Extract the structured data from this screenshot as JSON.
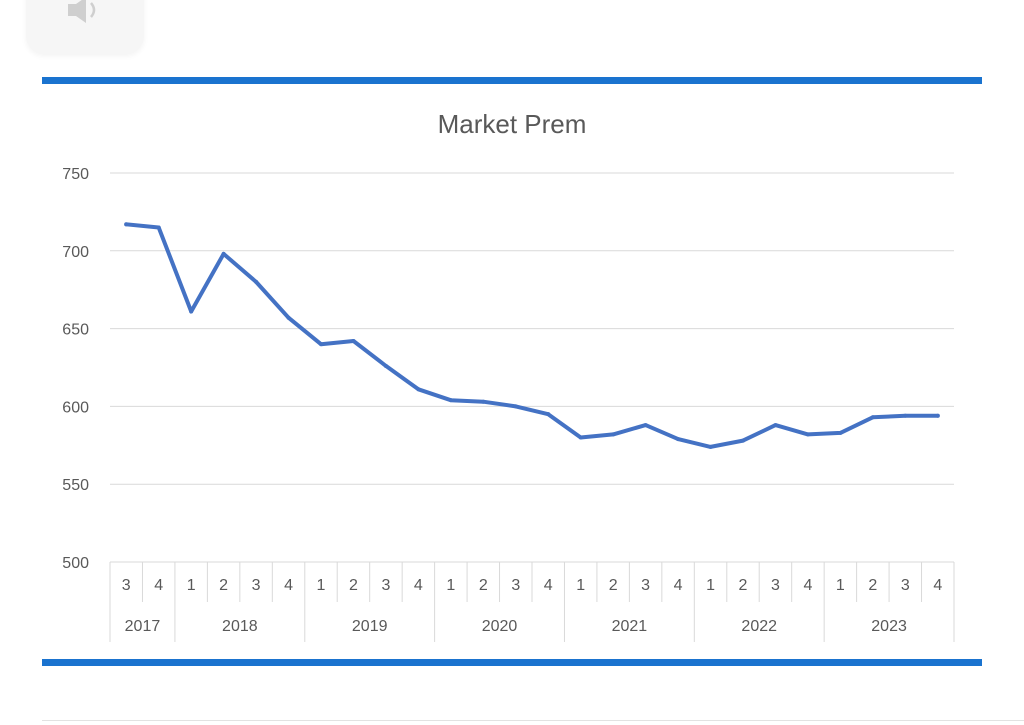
{
  "chart_data": {
    "type": "line",
    "title": "Market Prem",
    "xlabel": "",
    "ylabel": "",
    "ylim": [
      500,
      750
    ],
    "yticks": [
      500,
      550,
      600,
      650,
      700,
      750
    ],
    "grid": true,
    "line_color": "#4472c4",
    "x": [
      {
        "quarter": "3",
        "year": "2017"
      },
      {
        "quarter": "4",
        "year": "2017"
      },
      {
        "quarter": "1",
        "year": "2018"
      },
      {
        "quarter": "2",
        "year": "2018"
      },
      {
        "quarter": "3",
        "year": "2018"
      },
      {
        "quarter": "4",
        "year": "2018"
      },
      {
        "quarter": "1",
        "year": "2019"
      },
      {
        "quarter": "2",
        "year": "2019"
      },
      {
        "quarter": "3",
        "year": "2019"
      },
      {
        "quarter": "4",
        "year": "2019"
      },
      {
        "quarter": "1",
        "year": "2020"
      },
      {
        "quarter": "2",
        "year": "2020"
      },
      {
        "quarter": "3",
        "year": "2020"
      },
      {
        "quarter": "4",
        "year": "2020"
      },
      {
        "quarter": "1",
        "year": "2021"
      },
      {
        "quarter": "2",
        "year": "2021"
      },
      {
        "quarter": "3",
        "year": "2021"
      },
      {
        "quarter": "4",
        "year": "2021"
      },
      {
        "quarter": "1",
        "year": "2022"
      },
      {
        "quarter": "2",
        "year": "2022"
      },
      {
        "quarter": "3",
        "year": "2022"
      },
      {
        "quarter": "4",
        "year": "2022"
      },
      {
        "quarter": "1",
        "year": "2023"
      },
      {
        "quarter": "2",
        "year": "2023"
      },
      {
        "quarter": "3",
        "year": "2023"
      },
      {
        "quarter": "4",
        "year": "2023"
      }
    ],
    "years": [
      "2017",
      "2018",
      "2019",
      "2020",
      "2021",
      "2022",
      "2023"
    ],
    "series": [
      {
        "values": [
          717,
          715,
          661,
          698,
          680,
          657,
          640,
          642,
          626,
          611,
          604,
          603,
          600,
          595,
          580,
          582,
          588,
          579,
          574,
          578,
          588,
          582,
          583,
          593,
          594,
          594
        ]
      }
    ]
  }
}
